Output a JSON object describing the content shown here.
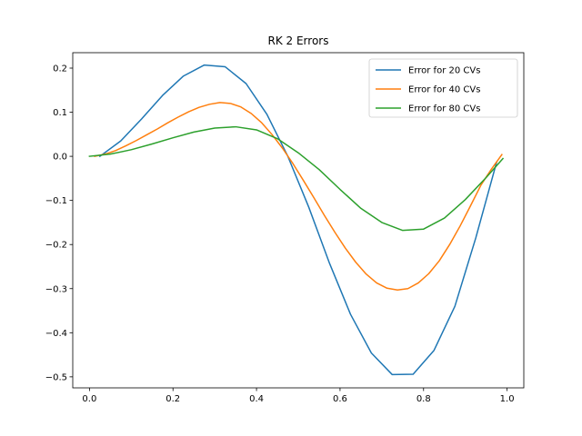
{
  "chart_data": {
    "type": "line",
    "title": "RK 2 Errors",
    "xlabel": "",
    "ylabel": "",
    "xlim": [
      -0.04,
      1.04
    ],
    "ylim": [
      -0.525,
      0.235
    ],
    "xticks": [
      0.0,
      0.2,
      0.4,
      0.6,
      0.8,
      1.0
    ],
    "xtick_labels": [
      "0.0",
      "0.2",
      "0.4",
      "0.6",
      "0.8",
      "1.0"
    ],
    "yticks": [
      -0.5,
      -0.4,
      -0.3,
      -0.2,
      -0.1,
      0.0,
      0.1,
      0.2
    ],
    "ytick_labels": [
      "−0.5",
      "−0.4",
      "−0.3",
      "−0.2",
      "−0.1",
      "0.0",
      "0.1",
      "0.2"
    ],
    "grid": false,
    "legend_position": "top-right",
    "series": [
      {
        "name": "Error for 20 CVs",
        "color": "#1f77b4",
        "x": [
          0.025,
          0.075,
          0.125,
          0.175,
          0.225,
          0.275,
          0.325,
          0.375,
          0.425,
          0.475,
          0.525,
          0.575,
          0.625,
          0.675,
          0.725,
          0.775,
          0.825,
          0.875,
          0.925,
          0.975
        ],
        "y": [
          0.0,
          0.035,
          0.085,
          0.138,
          0.182,
          0.207,
          0.203,
          0.165,
          0.095,
          0.0,
          -0.115,
          -0.243,
          -0.358,
          -0.446,
          -0.495,
          -0.494,
          -0.44,
          -0.34,
          -0.185,
          -0.013
        ]
      },
      {
        "name": "Error for 40 CVs",
        "color": "#ff7f0e",
        "x": [
          0.0125,
          0.0375,
          0.0625,
          0.0875,
          0.1125,
          0.1375,
          0.1625,
          0.1875,
          0.2125,
          0.2375,
          0.2625,
          0.2875,
          0.3125,
          0.3375,
          0.3625,
          0.3875,
          0.4125,
          0.4375,
          0.4625,
          0.4875,
          0.5125,
          0.5375,
          0.5625,
          0.5875,
          0.6125,
          0.6375,
          0.6625,
          0.6875,
          0.7125,
          0.7375,
          0.7625,
          0.7875,
          0.8125,
          0.8375,
          0.8625,
          0.8875,
          0.9125,
          0.9375,
          0.9625,
          0.9875
        ],
        "y": [
          0.0,
          0.005,
          0.013,
          0.024,
          0.036,
          0.049,
          0.062,
          0.076,
          0.089,
          0.101,
          0.111,
          0.118,
          0.122,
          0.12,
          0.112,
          0.097,
          0.076,
          0.049,
          0.018,
          -0.017,
          -0.055,
          -0.094,
          -0.134,
          -0.172,
          -0.208,
          -0.24,
          -0.267,
          -0.287,
          -0.299,
          -0.303,
          -0.3,
          -0.287,
          -0.266,
          -0.237,
          -0.2,
          -0.158,
          -0.112,
          -0.065,
          -0.029,
          0.004
        ]
      },
      {
        "name": "Error for 80 CVs",
        "color": "#2ca02c",
        "x": [
          0.0,
          0.05,
          0.1,
          0.15,
          0.2,
          0.25,
          0.3,
          0.35,
          0.4,
          0.45,
          0.5,
          0.55,
          0.6,
          0.65,
          0.7,
          0.75,
          0.8,
          0.85,
          0.9,
          0.95,
          0.99
        ],
        "y": [
          0.0,
          0.005,
          0.015,
          0.028,
          0.042,
          0.055,
          0.064,
          0.067,
          0.06,
          0.04,
          0.008,
          -0.03,
          -0.075,
          -0.118,
          -0.15,
          -0.168,
          -0.165,
          -0.14,
          -0.098,
          -0.048,
          -0.005
        ]
      }
    ]
  }
}
